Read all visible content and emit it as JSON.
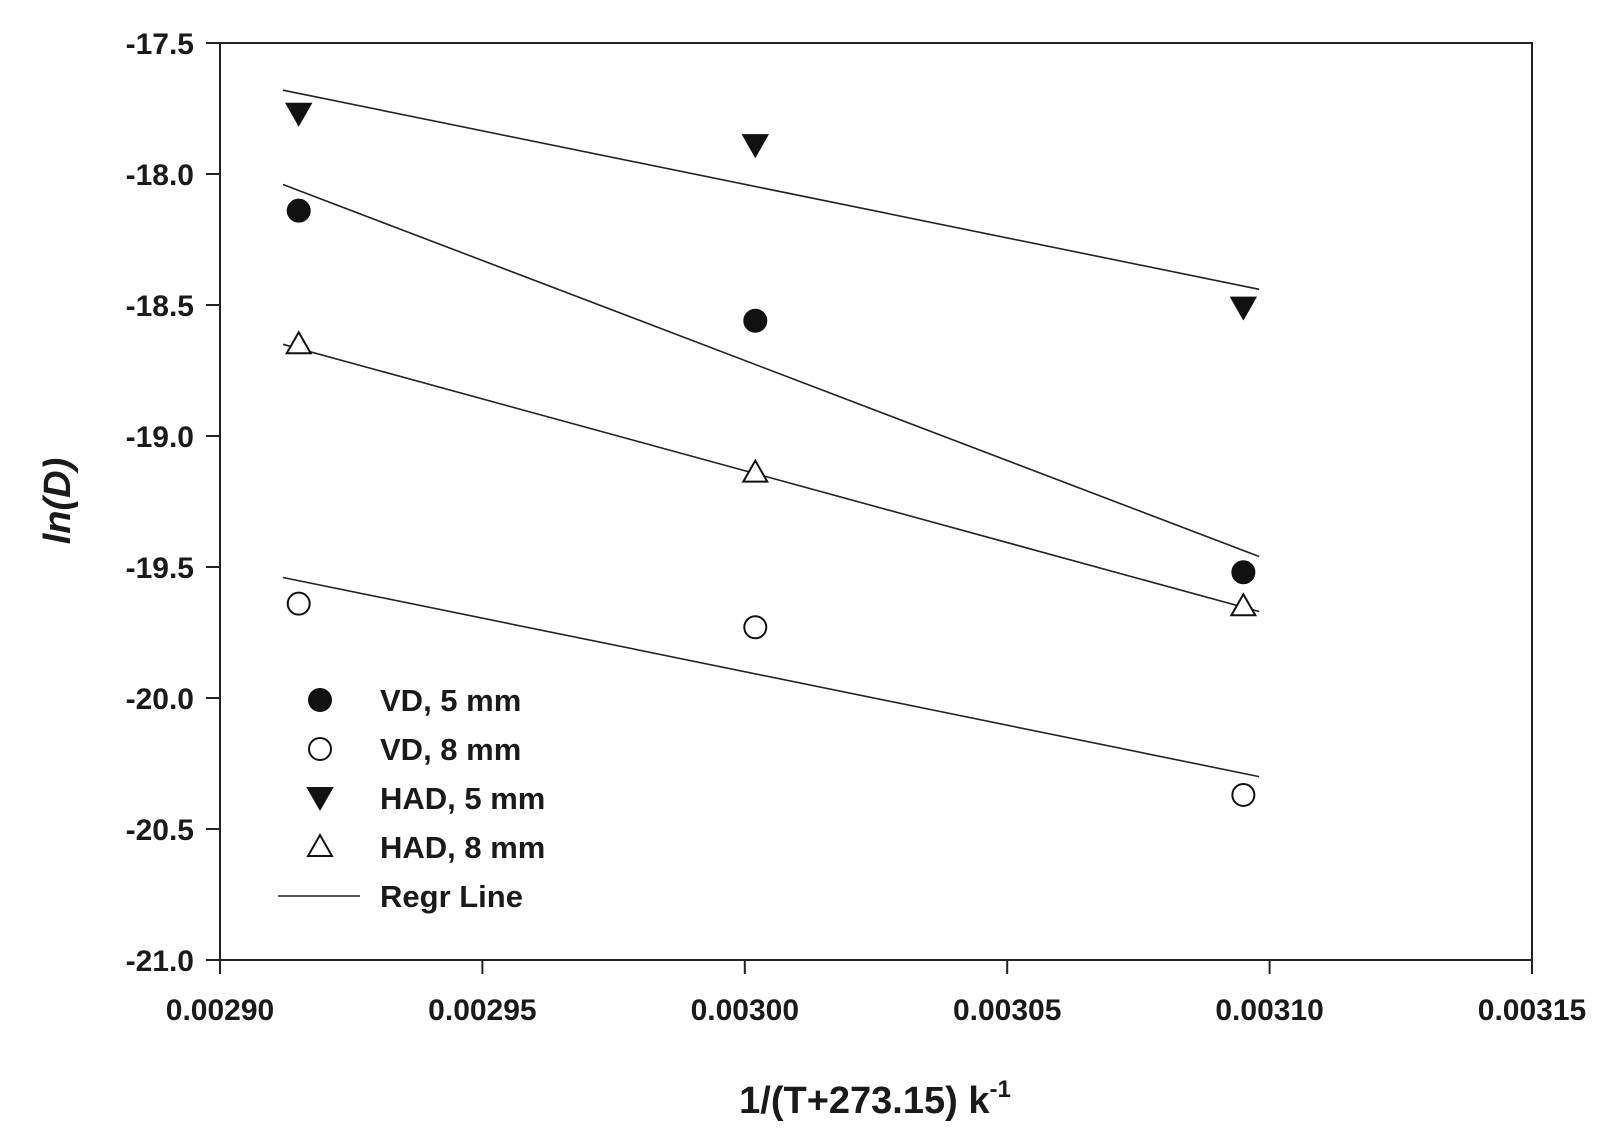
{
  "chart_data": {
    "type": "scatter",
    "xlabel": "1/(T+273.15) k",
    "xlabel_sup": "-1",
    "ylabel": "ln(D)",
    "xlim": [
      0.0029,
      0.00315
    ],
    "ylim": [
      -21.0,
      -17.5
    ],
    "x_ticks": [
      0.0029,
      0.00295,
      0.003,
      0.00305,
      0.0031,
      0.00315
    ],
    "x_tick_labels": [
      "0.00290",
      "0.00295",
      "0.00300",
      "0.00305",
      "0.00310",
      "0.00315"
    ],
    "y_ticks": [
      -17.5,
      -18.0,
      -18.5,
      -19.0,
      -19.5,
      -20.0,
      -20.5,
      -21.0
    ],
    "y_tick_labels": [
      "-17.5",
      "-18.0",
      "-18.5",
      "-19.0",
      "-19.5",
      "-20.0",
      "-20.5",
      "-21.0"
    ],
    "grid": false,
    "legend_position": "bottom-left",
    "series": [
      {
        "name": "VD, 5 mm",
        "marker": "circle-filled",
        "x": [
          0.002915,
          0.003002,
          0.003095
        ],
        "y": [
          -18.14,
          -18.56,
          -19.52
        ],
        "regression": {
          "x": [
            0.002912,
            0.003098
          ],
          "y": [
            -18.04,
            -19.46
          ]
        }
      },
      {
        "name": "VD, 8 mm",
        "marker": "circle-open",
        "x": [
          0.002915,
          0.003002,
          0.003095
        ],
        "y": [
          -19.64,
          -19.73,
          -20.37
        ],
        "regression": {
          "x": [
            0.002912,
            0.003098
          ],
          "y": [
            -19.54,
            -20.3
          ]
        }
      },
      {
        "name": "HAD, 5 mm",
        "marker": "triangle-down-filled",
        "x": [
          0.002915,
          0.003002,
          0.003095
        ],
        "y": [
          -17.77,
          -17.89,
          -18.51
        ],
        "regression": {
          "x": [
            0.002912,
            0.003098
          ],
          "y": [
            -17.68,
            -18.44
          ]
        }
      },
      {
        "name": "HAD, 8 mm",
        "marker": "triangle-up-open",
        "x": [
          0.002915,
          0.003002,
          0.003095
        ],
        "y": [
          -18.65,
          -19.14,
          -19.65
        ],
        "regression": {
          "x": [
            0.002912,
            0.003098
          ],
          "y": [
            -18.65,
            -19.67
          ]
        }
      }
    ],
    "regression_label": "Regr Line"
  },
  "colors": {
    "marker": "#111111",
    "line": "#222222",
    "axis": "#222222",
    "background": "#ffffff"
  }
}
